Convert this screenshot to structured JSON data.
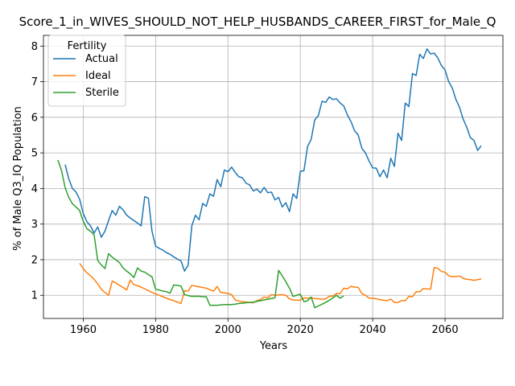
{
  "chart_data": {
    "type": "line",
    "title": "Score_1_in_WIVES_SHOULD_NOT_HELP_HUSBANDS_CAREER_FIRST_for_Male_Q",
    "xlabel": "Years",
    "ylabel": "% of Male Q3_IQ Population",
    "xlim": [
      1949,
      2076
    ],
    "ylim": [
      0.35,
      8.3
    ],
    "xticks": [
      1960,
      1980,
      2000,
      2020,
      2040,
      2060
    ],
    "yticks": [
      1,
      2,
      3,
      4,
      5,
      6,
      7,
      8
    ],
    "grid": true,
    "legend": {
      "title": "Fertility",
      "position": "upper left"
    },
    "series": [
      {
        "name": "Actual",
        "color": "#1f77b4",
        "points": [
          [
            1955,
            4.67
          ],
          [
            1956,
            4.27
          ],
          [
            1957,
            4.0
          ],
          [
            1958,
            3.9
          ],
          [
            1959,
            3.7
          ],
          [
            1960,
            3.3
          ],
          [
            1961,
            3.07
          ],
          [
            1962,
            2.95
          ],
          [
            1963,
            2.75
          ],
          [
            1964,
            2.92
          ],
          [
            1965,
            2.63
          ],
          [
            1966,
            2.8
          ],
          [
            1967,
            3.1
          ],
          [
            1968,
            3.38
          ],
          [
            1969,
            3.25
          ],
          [
            1970,
            3.5
          ],
          [
            1971,
            3.4
          ],
          [
            1972,
            3.25
          ],
          [
            1973,
            3.17
          ],
          [
            1974,
            3.1
          ],
          [
            1975,
            3.03
          ],
          [
            1976,
            2.95
          ],
          [
            1977,
            3.77
          ],
          [
            1978,
            3.73
          ],
          [
            1979,
            2.8
          ],
          [
            1980,
            2.38
          ],
          [
            1981,
            2.32
          ],
          [
            1982,
            2.27
          ],
          [
            1983,
            2.2
          ],
          [
            1984,
            2.15
          ],
          [
            1985,
            2.08
          ],
          [
            1986,
            2.02
          ],
          [
            1987,
            1.97
          ],
          [
            1988,
            1.68
          ],
          [
            1989,
            1.85
          ],
          [
            1990,
            2.95
          ],
          [
            1991,
            3.25
          ],
          [
            1992,
            3.12
          ],
          [
            1993,
            3.58
          ],
          [
            1994,
            3.5
          ],
          [
            1995,
            3.85
          ],
          [
            1996,
            3.78
          ],
          [
            1997,
            4.25
          ],
          [
            1998,
            4.05
          ],
          [
            1999,
            4.52
          ],
          [
            2000,
            4.47
          ],
          [
            2001,
            4.6
          ],
          [
            2002,
            4.45
          ],
          [
            2003,
            4.33
          ],
          [
            2004,
            4.3
          ],
          [
            2005,
            4.15
          ],
          [
            2006,
            4.1
          ],
          [
            2007,
            3.93
          ],
          [
            2008,
            3.98
          ],
          [
            2009,
            3.88
          ],
          [
            2010,
            4.03
          ],
          [
            2011,
            3.88
          ],
          [
            2012,
            3.9
          ],
          [
            2013,
            3.68
          ],
          [
            2014,
            3.75
          ],
          [
            2015,
            3.48
          ],
          [
            2016,
            3.6
          ],
          [
            2017,
            3.35
          ],
          [
            2018,
            3.85
          ],
          [
            2019,
            3.72
          ],
          [
            2020,
            4.48
          ],
          [
            2021,
            4.5
          ],
          [
            2022,
            5.18
          ],
          [
            2023,
            5.38
          ],
          [
            2024,
            5.93
          ],
          [
            2025,
            6.05
          ],
          [
            2026,
            6.45
          ],
          [
            2027,
            6.42
          ],
          [
            2028,
            6.57
          ],
          [
            2029,
            6.5
          ],
          [
            2030,
            6.52
          ],
          [
            2031,
            6.4
          ],
          [
            2032,
            6.32
          ],
          [
            2033,
            6.07
          ],
          [
            2034,
            5.88
          ],
          [
            2035,
            5.62
          ],
          [
            2036,
            5.5
          ],
          [
            2037,
            5.13
          ],
          [
            2038,
            5.0
          ],
          [
            2039,
            4.77
          ],
          [
            2040,
            4.58
          ],
          [
            2041,
            4.57
          ],
          [
            2042,
            4.33
          ],
          [
            2043,
            4.52
          ],
          [
            2044,
            4.3
          ],
          [
            2045,
            4.85
          ],
          [
            2046,
            4.62
          ],
          [
            2047,
            5.55
          ],
          [
            2048,
            5.35
          ],
          [
            2049,
            6.4
          ],
          [
            2050,
            6.3
          ],
          [
            2051,
            7.23
          ],
          [
            2052,
            7.17
          ],
          [
            2053,
            7.77
          ],
          [
            2054,
            7.65
          ],
          [
            2055,
            7.92
          ],
          [
            2056,
            7.78
          ],
          [
            2057,
            7.8
          ],
          [
            2058,
            7.67
          ],
          [
            2059,
            7.45
          ],
          [
            2060,
            7.33
          ],
          [
            2061,
            7.0
          ],
          [
            2062,
            6.82
          ],
          [
            2063,
            6.5
          ],
          [
            2064,
            6.28
          ],
          [
            2065,
            5.95
          ],
          [
            2066,
            5.72
          ],
          [
            2067,
            5.43
          ],
          [
            2068,
            5.35
          ],
          [
            2069,
            5.07
          ],
          [
            2070,
            5.2
          ]
        ]
      },
      {
        "name": "Ideal",
        "color": "#ff7f0e",
        "points": [
          [
            1959,
            1.9
          ],
          [
            1960,
            1.75
          ],
          [
            1961,
            1.63
          ],
          [
            1962,
            1.55
          ],
          [
            1963,
            1.45
          ],
          [
            1964,
            1.32
          ],
          [
            1965,
            1.17
          ],
          [
            1966,
            1.08
          ],
          [
            1967,
            1.0
          ],
          [
            1968,
            1.4
          ],
          [
            1969,
            1.35
          ],
          [
            1970,
            1.28
          ],
          [
            1971,
            1.22
          ],
          [
            1972,
            1.15
          ],
          [
            1973,
            1.43
          ],
          [
            1974,
            1.3
          ],
          [
            1975,
            1.27
          ],
          [
            1976,
            1.23
          ],
          [
            1977,
            1.18
          ],
          [
            1978,
            1.13
          ],
          [
            1979,
            1.08
          ],
          [
            1980,
            1.04
          ],
          [
            1981,
            1.0
          ],
          [
            1982,
            0.96
          ],
          [
            1983,
            0.92
          ],
          [
            1984,
            0.88
          ],
          [
            1985,
            0.85
          ],
          [
            1986,
            0.81
          ],
          [
            1987,
            0.77
          ],
          [
            1988,
            1.13
          ],
          [
            1989,
            1.12
          ],
          [
            1990,
            1.28
          ],
          [
            1991,
            1.26
          ],
          [
            1992,
            1.24
          ],
          [
            1993,
            1.22
          ],
          [
            1994,
            1.2
          ],
          [
            1995,
            1.16
          ],
          [
            1996,
            1.12
          ],
          [
            1997,
            1.25
          ],
          [
            1998,
            1.08
          ],
          [
            1999,
            1.07
          ],
          [
            2000,
            1.05
          ],
          [
            2001,
            1.02
          ],
          [
            2002,
            0.87
          ],
          [
            2003,
            0.84
          ],
          [
            2004,
            0.82
          ],
          [
            2005,
            0.81
          ],
          [
            2006,
            0.8
          ],
          [
            2007,
            0.79
          ],
          [
            2008,
            0.85
          ],
          [
            2009,
            0.88
          ],
          [
            2010,
            0.95
          ],
          [
            2011,
            0.93
          ],
          [
            2012,
            1.02
          ],
          [
            2013,
            1.0
          ],
          [
            2014,
            1.01
          ],
          [
            2015,
            1.02
          ],
          [
            2016,
            1.0
          ],
          [
            2017,
            0.9
          ],
          [
            2018,
            0.87
          ],
          [
            2019,
            0.86
          ],
          [
            2020,
            0.86
          ],
          [
            2021,
            0.93
          ],
          [
            2022,
            0.92
          ],
          [
            2023,
            0.93
          ],
          [
            2024,
            0.91
          ],
          [
            2025,
            0.9
          ],
          [
            2026,
            0.89
          ],
          [
            2027,
            0.9
          ],
          [
            2028,
            0.97
          ],
          [
            2029,
            0.98
          ],
          [
            2030,
            1.05
          ],
          [
            2031,
            1.05
          ],
          [
            2032,
            1.2
          ],
          [
            2033,
            1.18
          ],
          [
            2034,
            1.25
          ],
          [
            2035,
            1.23
          ],
          [
            2036,
            1.22
          ],
          [
            2037,
            1.05
          ],
          [
            2038,
            1.0
          ],
          [
            2039,
            0.92
          ],
          [
            2040,
            0.92
          ],
          [
            2041,
            0.9
          ],
          [
            2042,
            0.88
          ],
          [
            2043,
            0.86
          ],
          [
            2044,
            0.85
          ],
          [
            2045,
            0.89
          ],
          [
            2046,
            0.8
          ],
          [
            2047,
            0.8
          ],
          [
            2048,
            0.85
          ],
          [
            2049,
            0.85
          ],
          [
            2050,
            0.97
          ],
          [
            2051,
            0.96
          ],
          [
            2052,
            1.1
          ],
          [
            2053,
            1.1
          ],
          [
            2054,
            1.19
          ],
          [
            2055,
            1.18
          ],
          [
            2056,
            1.17
          ],
          [
            2057,
            1.78
          ],
          [
            2058,
            1.76
          ],
          [
            2059,
            1.67
          ],
          [
            2060,
            1.65
          ],
          [
            2061,
            1.55
          ],
          [
            2062,
            1.52
          ],
          [
            2063,
            1.53
          ],
          [
            2064,
            1.54
          ],
          [
            2065,
            1.48
          ],
          [
            2066,
            1.45
          ],
          [
            2067,
            1.44
          ],
          [
            2068,
            1.42
          ],
          [
            2069,
            1.44
          ],
          [
            2070,
            1.46
          ]
        ]
      },
      {
        "name": "Sterile",
        "color": "#2ca02c",
        "points": [
          [
            1953,
            4.8
          ],
          [
            1954,
            4.5
          ],
          [
            1955,
            4.02
          ],
          [
            1956,
            3.75
          ],
          [
            1957,
            3.57
          ],
          [
            1958,
            3.48
          ],
          [
            1959,
            3.38
          ],
          [
            1960,
            3.08
          ],
          [
            1961,
            2.87
          ],
          [
            1962,
            2.8
          ],
          [
            1963,
            2.7
          ],
          [
            1964,
            1.98
          ],
          [
            1965,
            1.85
          ],
          [
            1966,
            1.75
          ],
          [
            1967,
            2.17
          ],
          [
            1968,
            2.07
          ],
          [
            1969,
            2.0
          ],
          [
            1970,
            1.92
          ],
          [
            1971,
            1.77
          ],
          [
            1972,
            1.68
          ],
          [
            1973,
            1.6
          ],
          [
            1974,
            1.5
          ],
          [
            1975,
            1.77
          ],
          [
            1976,
            1.68
          ],
          [
            1977,
            1.65
          ],
          [
            1978,
            1.58
          ],
          [
            1979,
            1.52
          ],
          [
            1980,
            1.17
          ],
          [
            1981,
            1.15
          ],
          [
            1982,
            1.12
          ],
          [
            1983,
            1.1
          ],
          [
            1984,
            1.06
          ],
          [
            1985,
            1.29
          ],
          [
            1986,
            1.28
          ],
          [
            1987,
            1.26
          ],
          [
            1988,
            1.02
          ],
          [
            1989,
            0.99
          ],
          [
            1990,
            0.97
          ],
          [
            1991,
            0.97
          ],
          [
            1992,
            0.97
          ],
          [
            1993,
            0.96
          ],
          [
            1994,
            0.96
          ],
          [
            1995,
            0.72
          ],
          [
            1996,
            0.72
          ],
          [
            1997,
            0.72
          ],
          [
            1998,
            0.73
          ],
          [
            1999,
            0.74
          ],
          [
            2000,
            0.74
          ],
          [
            2001,
            0.74
          ],
          [
            2002,
            0.75
          ],
          [
            2003,
            0.77
          ],
          [
            2004,
            0.78
          ],
          [
            2005,
            0.79
          ],
          [
            2006,
            0.8
          ],
          [
            2007,
            0.81
          ],
          [
            2008,
            0.83
          ],
          [
            2009,
            0.85
          ],
          [
            2010,
            0.87
          ],
          [
            2011,
            0.89
          ],
          [
            2012,
            0.91
          ],
          [
            2013,
            0.93
          ],
          [
            2014,
            1.7
          ],
          [
            2015,
            1.55
          ],
          [
            2016,
            1.38
          ],
          [
            2017,
            1.2
          ],
          [
            2018,
            0.97
          ],
          [
            2019,
            1.0
          ],
          [
            2020,
            1.03
          ],
          [
            2021,
            0.82
          ],
          [
            2022,
            0.85
          ],
          [
            2023,
            0.95
          ],
          [
            2024,
            0.65
          ],
          [
            2025,
            0.7
          ],
          [
            2026,
            0.75
          ],
          [
            2027,
            0.8
          ],
          [
            2028,
            0.86
          ],
          [
            2029,
            0.93
          ],
          [
            2030,
            1.0
          ],
          [
            2031,
            0.92
          ],
          [
            2032,
            0.98
          ]
        ]
      }
    ]
  }
}
